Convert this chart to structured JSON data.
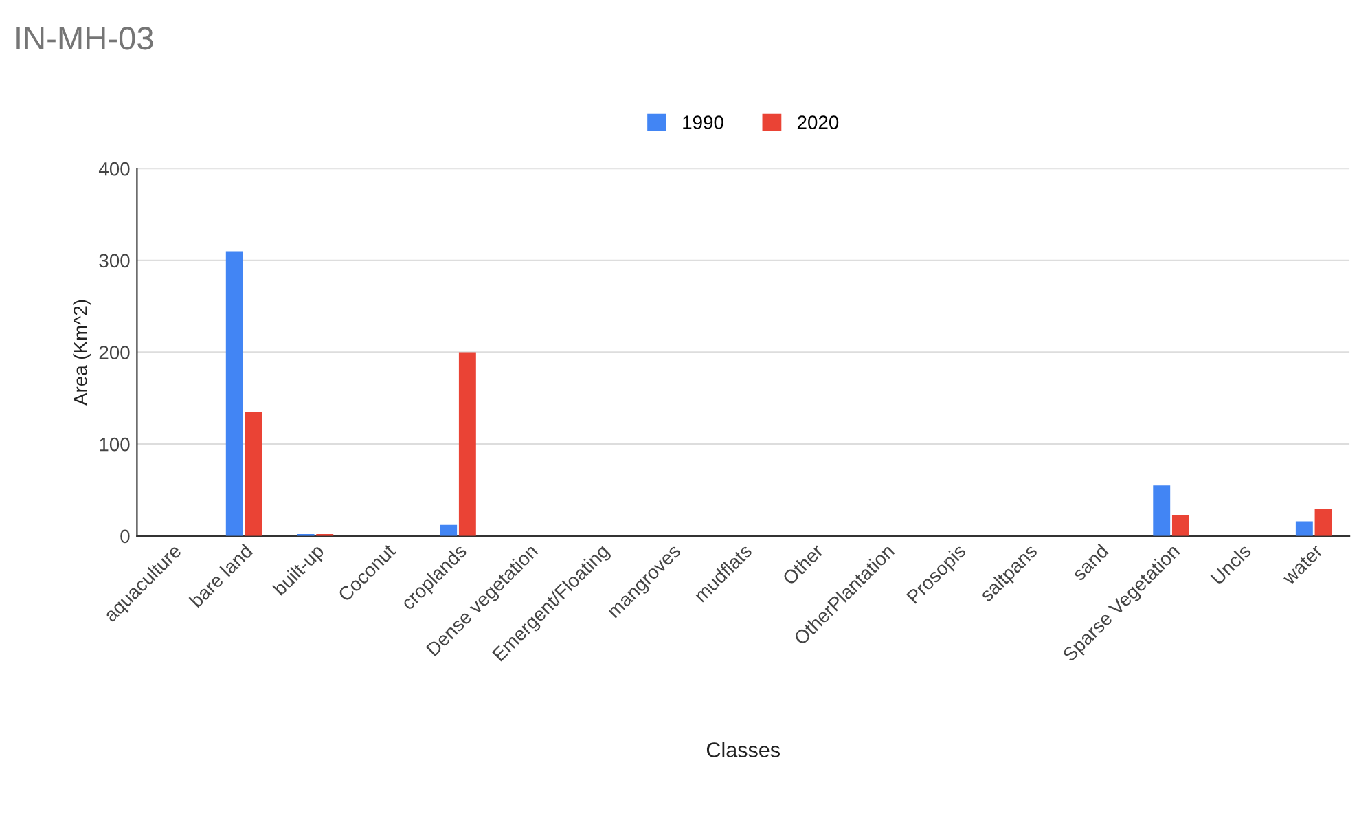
{
  "chart_data": {
    "type": "bar",
    "title": "IN-MH-03",
    "xlabel": "Classes",
    "ylabel": "Area (Km^2)",
    "categories": [
      "aquaculture",
      "bare land",
      "built-up",
      "Coconut",
      "croplands",
      "Dense vegetation",
      "Emergent/Floating",
      "mangroves",
      "mudflats",
      "Other",
      "OtherPlantation",
      "Prosopis",
      "saltpans",
      "sand",
      "Sparse Vegetation",
      "Uncls",
      "water"
    ],
    "series": [
      {
        "name": "1990",
        "color": "#4285f4",
        "values": [
          0,
          310,
          2,
          0,
          12,
          0,
          0,
          0,
          0,
          0,
          0,
          0,
          0,
          0,
          55,
          0,
          16
        ]
      },
      {
        "name": "2020",
        "color": "#ea4335",
        "values": [
          0,
          135,
          2,
          0,
          200,
          0,
          0,
          0,
          0,
          0,
          0,
          0,
          0,
          0,
          23,
          0,
          29
        ]
      }
    ],
    "ylim": [
      0,
      400
    ],
    "yticks": [
      0,
      100,
      200,
      300,
      400
    ],
    "grid": "y",
    "legend": "top"
  }
}
